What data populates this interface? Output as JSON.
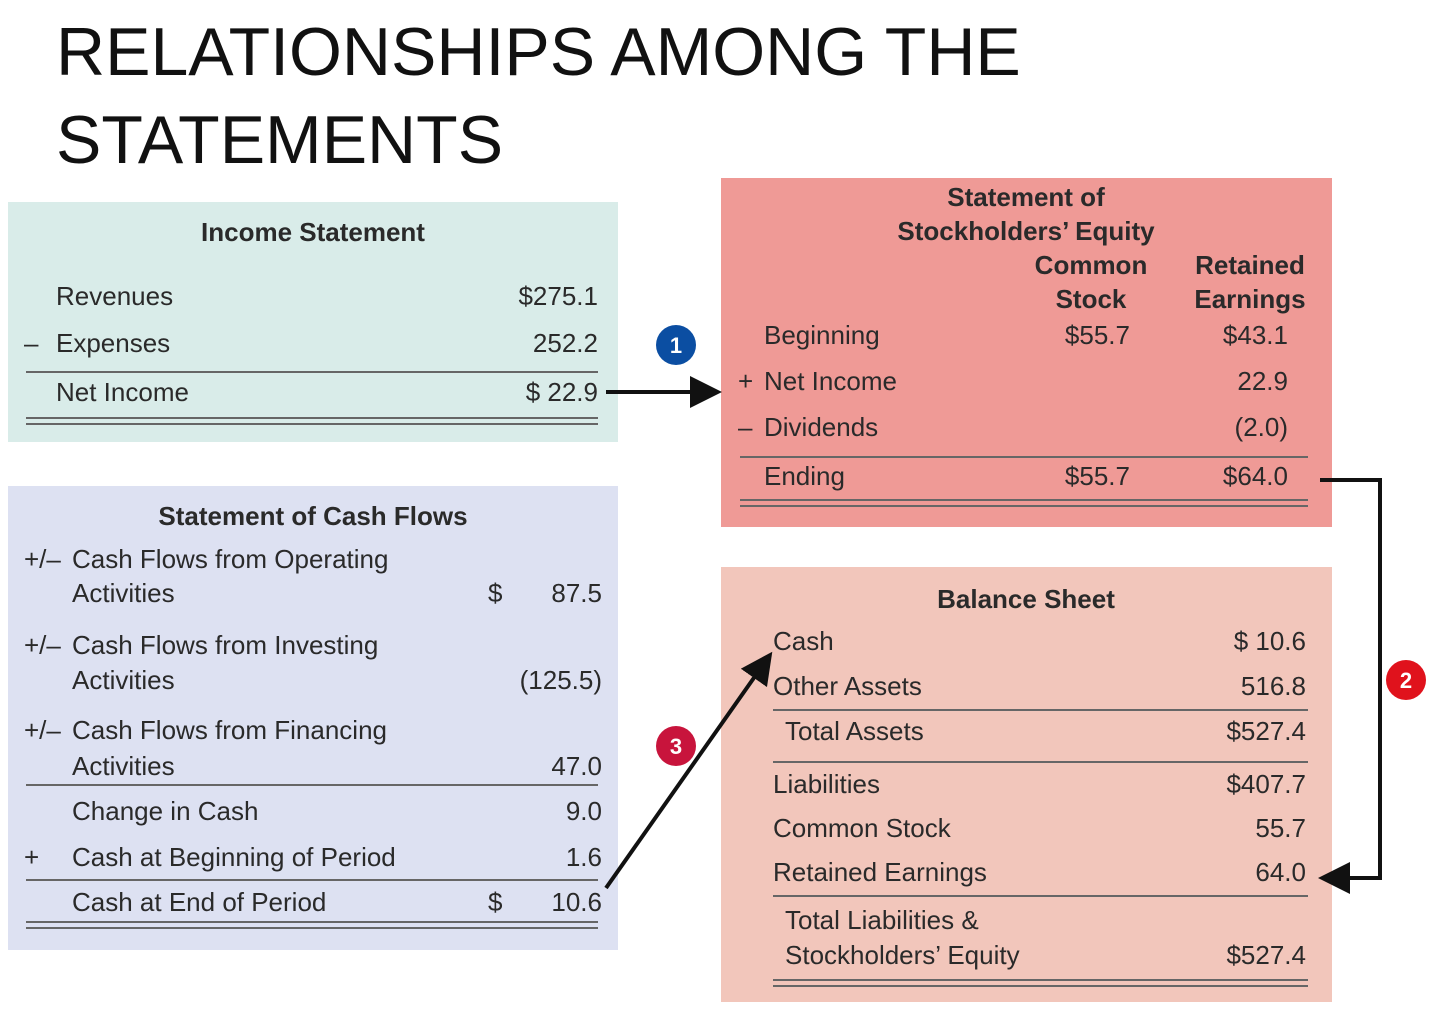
{
  "title": [
    "RELATIONSHIPS AMONG THE",
    "STATEMENTS"
  ],
  "income_statement": {
    "title": "Income Statement",
    "rows": [
      {
        "label": "Revenues",
        "amount": "$275.1"
      },
      {
        "sign": "–",
        "label": "Expenses",
        "amount": "252.2"
      },
      {
        "label": "Net Income",
        "amount": "$ 22.9"
      }
    ]
  },
  "cash_flows": {
    "title": "Statement of Cash Flows",
    "rows": [
      {
        "sign": "+/–",
        "label": [
          "Cash Flows from Operating",
          "Activities"
        ],
        "currency": "$",
        "amount": "87.5"
      },
      {
        "sign": "+/–",
        "label": [
          "Cash Flows from Investing",
          "Activities"
        ],
        "amount": "(125.5)"
      },
      {
        "sign": "+/–",
        "label": [
          "Cash Flows from Financing",
          "Activities"
        ],
        "amount": "47.0"
      },
      {
        "label": [
          "Change in Cash"
        ],
        "amount": "9.0"
      },
      {
        "sign": "+",
        "label": [
          "Cash at Beginning of Period"
        ],
        "amount": "1.6"
      },
      {
        "label": [
          "Cash at End of Period"
        ],
        "currency": "$",
        "amount": "10.6"
      }
    ]
  },
  "stockholders_equity": {
    "title": [
      "Statement of",
      "Stockholders’ Equity"
    ],
    "columns": [
      [
        "Common",
        "Stock"
      ],
      [
        "Retained",
        "Earnings"
      ]
    ],
    "rows": [
      {
        "label": "Beginning",
        "common_stock": "$55.7",
        "retained_earnings": "$43.1"
      },
      {
        "sign": "+",
        "label": "Net Income",
        "retained_earnings": "22.9"
      },
      {
        "sign": "–",
        "label": "Dividends",
        "retained_earnings": "(2.0)"
      },
      {
        "label": "Ending",
        "common_stock": "$55.7",
        "retained_earnings": "$64.0"
      }
    ]
  },
  "balance_sheet": {
    "title": "Balance Sheet",
    "rows": [
      {
        "label": [
          "Cash"
        ],
        "amount": "$ 10.6"
      },
      {
        "label": [
          "Other Assets"
        ],
        "amount": "516.8"
      },
      {
        "label": [
          "Total Assets"
        ],
        "amount": "$527.4"
      },
      {
        "label": [
          "Liabilities"
        ],
        "amount": "$407.7"
      },
      {
        "label": [
          "Common Stock"
        ],
        "amount": "55.7"
      },
      {
        "label": [
          "Retained Earnings"
        ],
        "amount": "64.0"
      },
      {
        "label": [
          "Total Liabilities &",
          "Stockholders’ Equity"
        ],
        "amount": "$527.4"
      }
    ]
  },
  "markers": [
    "1",
    "2",
    "3"
  ]
}
